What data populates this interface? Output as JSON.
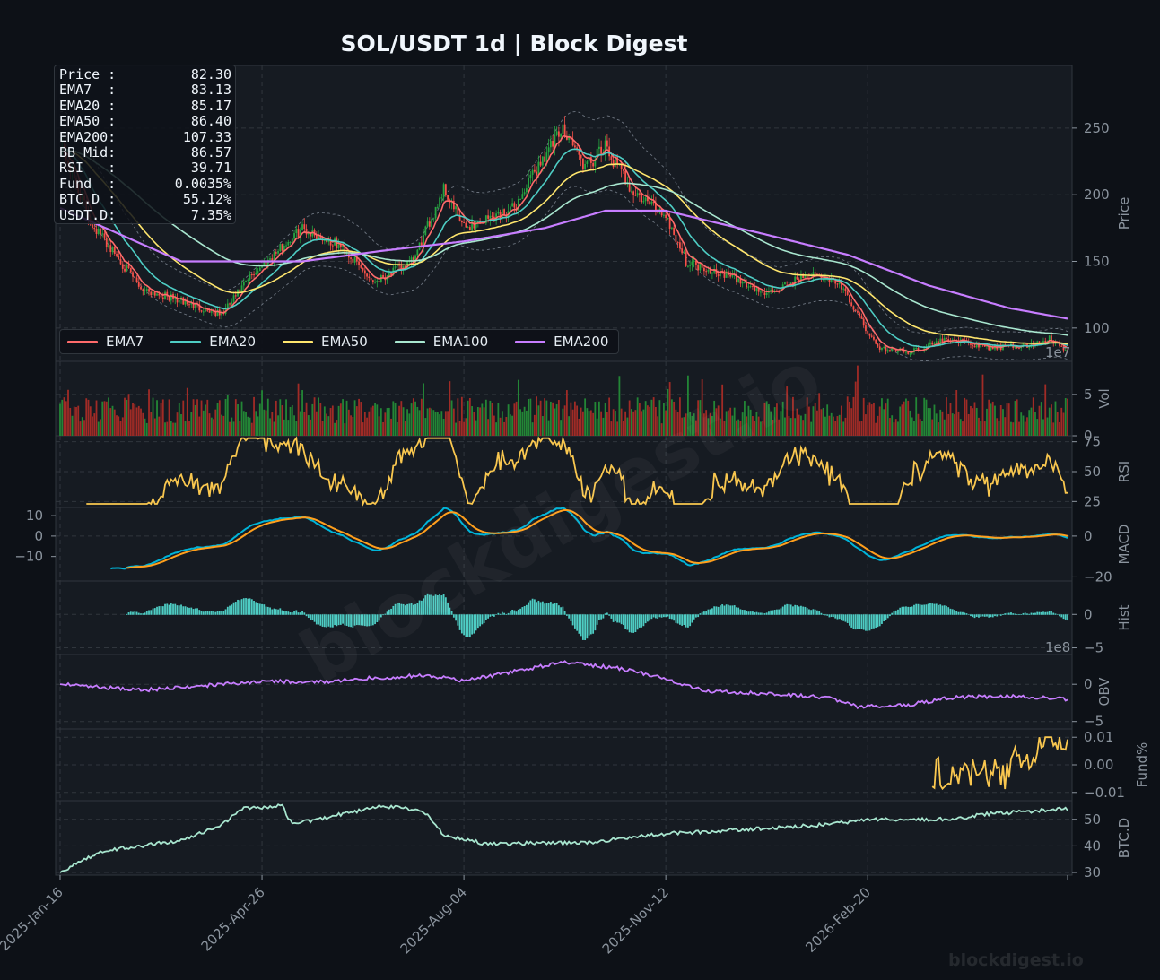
{
  "title": "SOL/USDT  1d  |  Block Digest",
  "watermark": "blockdigest.io",
  "footer": "blockdigest.io",
  "colors": {
    "background": "#0d1117",
    "panel": "#161b22",
    "grid": "#30363d",
    "up": "#26a641",
    "down": "#f85149",
    "ema7": "#ff6b6b",
    "ema20": "#4ecdc4",
    "ema50": "#ffe66d",
    "ema100": "#a8e6cf",
    "ema200": "#c77dff",
    "rsi": "#f9c74f",
    "macd": "#00b4d8",
    "signal": "#ff9f1c",
    "hist": "#4ecdc4",
    "obv": "#c77dff",
    "fund": "#f9c74f",
    "btcd": "#a8e6cf"
  },
  "info_box": [
    {
      "label": "Price :",
      "value": "82.30"
    },
    {
      "label": "EMA7  :",
      "value": "83.13"
    },
    {
      "label": "EMA20 :",
      "value": "85.17"
    },
    {
      "label": "EMA50 :",
      "value": "86.40"
    },
    {
      "label": "EMA200:",
      "value": "107.33"
    },
    {
      "label": "BB Mid:",
      "value": "86.57"
    },
    {
      "label": "RSI   :",
      "value": "39.71"
    },
    {
      "label": "Fund  :",
      "value": "0.0035%"
    },
    {
      "label": "BTC.D :",
      "value": "55.12%"
    },
    {
      "label": "USDT.D:",
      "value": "7.35%"
    }
  ],
  "legend": [
    {
      "name": "EMA7",
      "color": "#ff6b6b"
    },
    {
      "name": "EMA20",
      "color": "#4ecdc4"
    },
    {
      "name": "EMA50",
      "color": "#ffe66d"
    },
    {
      "name": "EMA100",
      "color": "#a8e6cf"
    },
    {
      "name": "EMA200",
      "color": "#c77dff"
    }
  ],
  "sci_vol": "1e7",
  "sci_obv": "1e8",
  "chart_data": {
    "type": "line",
    "x_axis": {
      "tick_labels": [
        "2025-Jan-16",
        "2025-Apr-26",
        "2025-Aug-04",
        "2025-Nov-12",
        "2026-Feb-20"
      ],
      "tick_days": [
        0,
        100,
        200,
        300,
        400
      ],
      "total_days": 499
    },
    "panels": [
      {
        "id": "price",
        "ylabel": "Price",
        "ylim": [
          75,
          297
        ],
        "ticks": [
          100,
          150,
          200,
          250
        ],
        "anchors": [
          [
            0,
            240
          ],
          [
            15,
            180
          ],
          [
            40,
            130
          ],
          [
            60,
            120
          ],
          [
            80,
            110
          ],
          [
            95,
            140
          ],
          [
            120,
            175
          ],
          [
            140,
            160
          ],
          [
            155,
            135
          ],
          [
            175,
            150
          ],
          [
            190,
            205
          ],
          [
            200,
            175
          ],
          [
            225,
            190
          ],
          [
            240,
            230
          ],
          [
            250,
            250
          ],
          [
            260,
            220
          ],
          [
            270,
            235
          ],
          [
            285,
            200
          ],
          [
            300,
            185
          ],
          [
            310,
            150
          ],
          [
            330,
            140
          ],
          [
            350,
            125
          ],
          [
            370,
            140
          ],
          [
            385,
            135
          ],
          [
            395,
            110
          ],
          [
            405,
            85
          ],
          [
            420,
            82
          ],
          [
            440,
            92
          ],
          [
            460,
            85
          ],
          [
            480,
            87
          ],
          [
            490,
            92
          ],
          [
            499,
            82
          ]
        ]
      },
      {
        "id": "volume",
        "ylabel": "Vol",
        "ylim": [
          0,
          9
        ],
        "ticks": [
          0,
          5
        ]
      },
      {
        "id": "rsi",
        "ylabel": "RSI",
        "ylim": [
          20,
          80
        ],
        "ticks": [
          25,
          50,
          75
        ]
      },
      {
        "id": "macd",
        "ylabel": "MACD",
        "ylim": [
          -22,
          14
        ],
        "ticks_left": [
          10,
          0,
          -10
        ],
        "ticks": [
          0,
          -20
        ]
      },
      {
        "id": "hist",
        "ylabel": "Hist",
        "ylim": [
          -6,
          5
        ],
        "ticks": [
          0,
          -5
        ]
      },
      {
        "id": "obv",
        "ylabel": "OBV",
        "ylim": [
          -6,
          4
        ],
        "ticks": [
          0,
          -5
        ]
      },
      {
        "id": "fund",
        "ylabel": "Fund%",
        "ylim": [
          -0.013,
          0.013
        ],
        "ticks": [
          0.01,
          0.0,
          -0.01
        ]
      },
      {
        "id": "btcd",
        "ylabel": "BTC.D",
        "ylim": [
          29,
          57
        ],
        "ticks": [
          30,
          40,
          50
        ]
      }
    ],
    "legend_series": [
      "EMA7",
      "EMA20",
      "EMA50",
      "EMA100",
      "EMA200"
    ],
    "ema200_anchors": [
      [
        0,
        190
      ],
      [
        60,
        150
      ],
      [
        120,
        150
      ],
      [
        160,
        158
      ],
      [
        200,
        165
      ],
      [
        240,
        175
      ],
      [
        270,
        188
      ],
      [
        300,
        188
      ],
      [
        350,
        170
      ],
      [
        390,
        155
      ],
      [
        430,
        132
      ],
      [
        470,
        115
      ],
      [
        499,
        107
      ]
    ],
    "btcd_anchors": [
      [
        0,
        30
      ],
      [
        20,
        38
      ],
      [
        60,
        42
      ],
      [
        80,
        48
      ],
      [
        90,
        54
      ],
      [
        110,
        55
      ],
      [
        115,
        48
      ],
      [
        140,
        52
      ],
      [
        160,
        55
      ],
      [
        180,
        53
      ],
      [
        190,
        44
      ],
      [
        210,
        41
      ],
      [
        260,
        41
      ],
      [
        290,
        44
      ],
      [
        310,
        45
      ],
      [
        360,
        47
      ],
      [
        380,
        48
      ],
      [
        400,
        50
      ],
      [
        440,
        50
      ],
      [
        460,
        52
      ],
      [
        499,
        54
      ]
    ],
    "obv_anchors": [
      [
        0,
        0
      ],
      [
        40,
        -0.8
      ],
      [
        100,
        0.4
      ],
      [
        130,
        0.3
      ],
      [
        150,
        0.8
      ],
      [
        160,
        0.9
      ],
      [
        180,
        1.2
      ],
      [
        200,
        0.5
      ],
      [
        230,
        2.0
      ],
      [
        250,
        3.0
      ],
      [
        275,
        2.2
      ],
      [
        300,
        0.8
      ],
      [
        320,
        -1.0
      ],
      [
        350,
        -1.2
      ],
      [
        380,
        -1.8
      ],
      [
        395,
        -3.0
      ],
      [
        420,
        -2.8
      ],
      [
        440,
        -1.8
      ],
      [
        470,
        -1.6
      ],
      [
        499,
        -2.0
      ]
    ]
  }
}
